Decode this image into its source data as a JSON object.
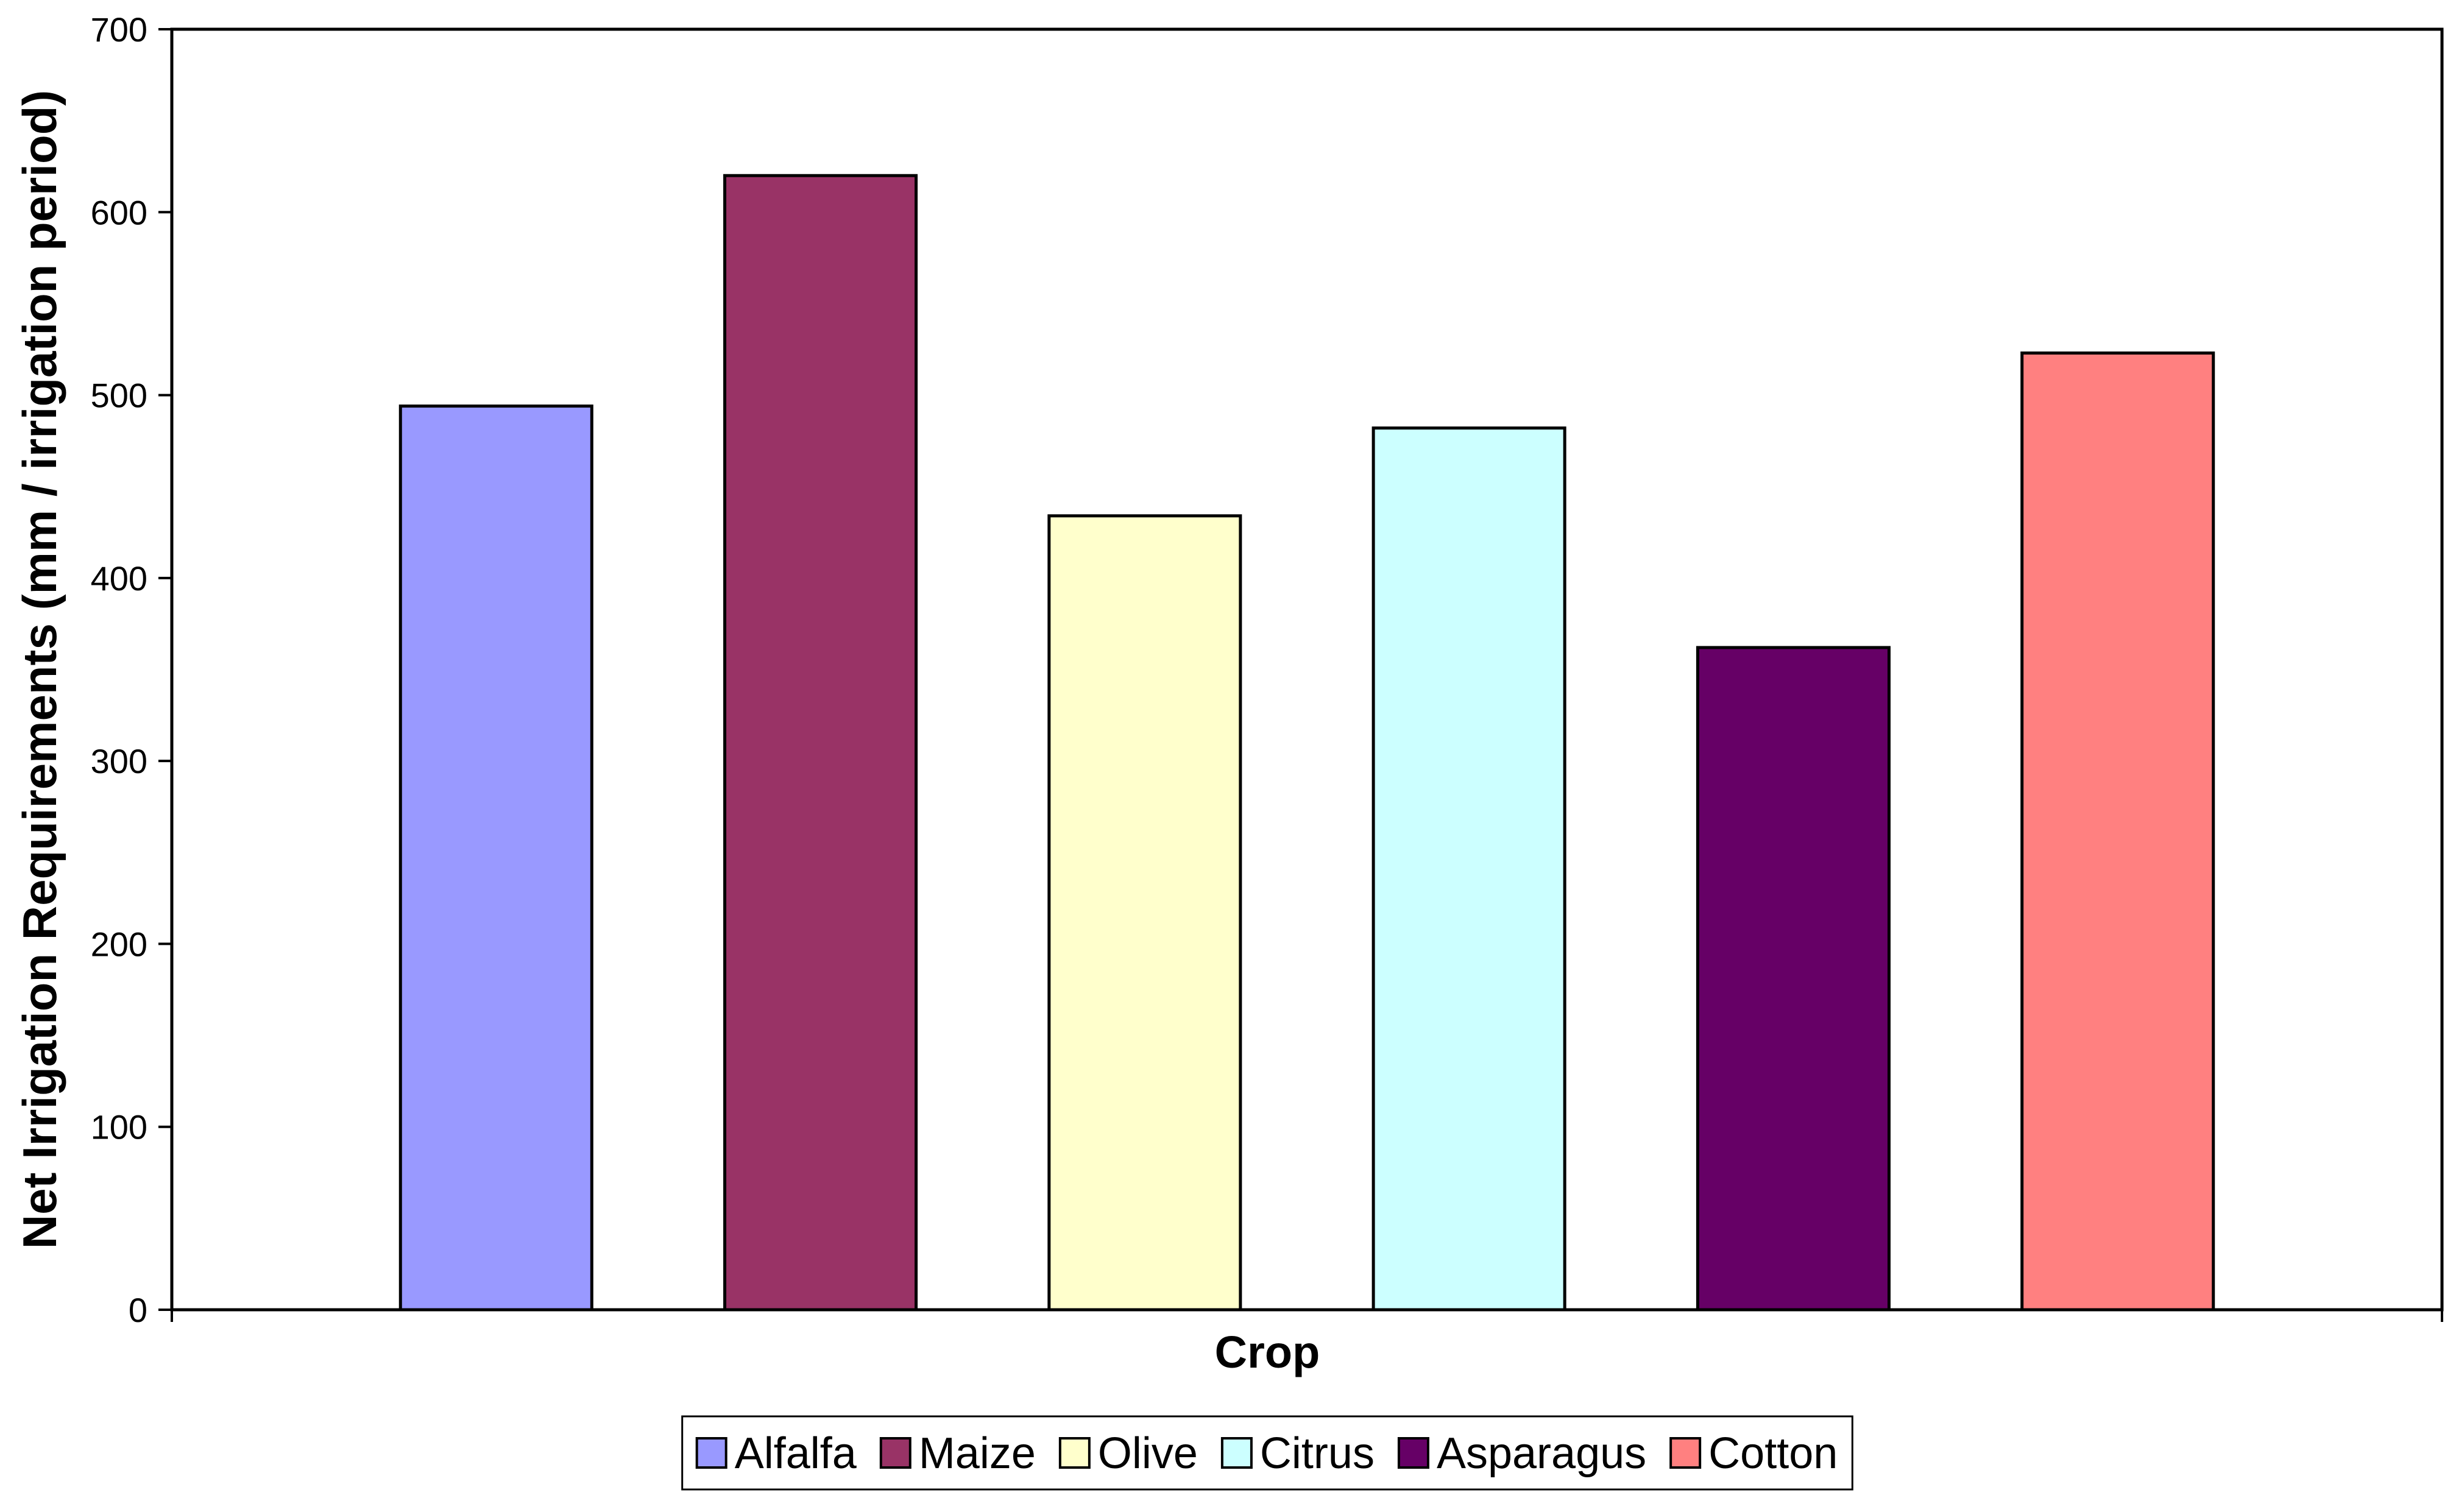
{
  "chart_data": {
    "type": "bar",
    "title": "",
    "xlabel": "Crop",
    "ylabel": "Net Irrigation Requirements (mm / irrigation period)",
    "ylim": [
      0,
      700
    ],
    "yticks": [
      0,
      100,
      200,
      300,
      400,
      500,
      600,
      700
    ],
    "grid": false,
    "legend_position": "bottom",
    "series": [
      {
        "name": "Alfalfa",
        "value": 494,
        "color": "#9999FF"
      },
      {
        "name": "Maize",
        "value": 620,
        "color": "#993366"
      },
      {
        "name": "Olive",
        "value": 434,
        "color": "#FFFFCC"
      },
      {
        "name": "Citrus",
        "value": 482,
        "color": "#CCFFFF"
      },
      {
        "name": "Asparagus",
        "value": 362,
        "color": "#660066"
      },
      {
        "name": "Cotton",
        "value": 523,
        "color": "#FF8080"
      }
    ]
  }
}
